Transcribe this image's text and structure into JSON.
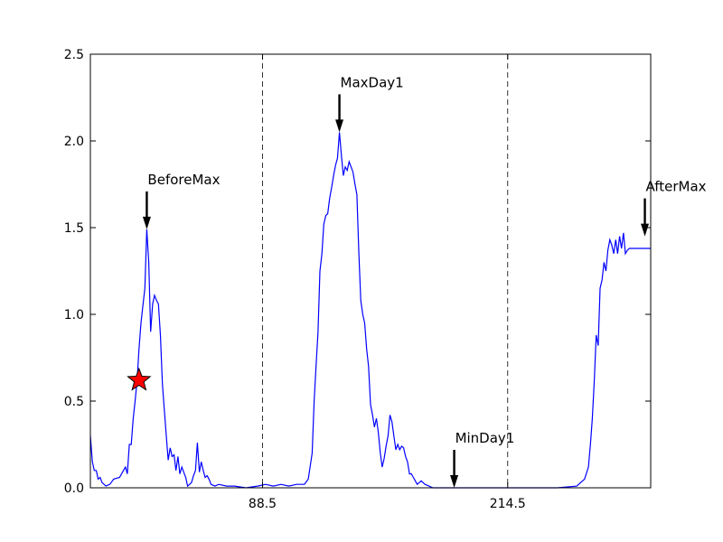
{
  "chart_data": {
    "type": "line",
    "title": "",
    "xlabel": "",
    "ylabel": "",
    "xlim": [
      0,
      288
    ],
    "ylim": [
      0,
      2.5
    ],
    "xticks": [
      {
        "value": 88.5,
        "label": "88.5"
      },
      {
        "value": 214.5,
        "label": "214.5"
      }
    ],
    "yticks": [
      {
        "value": 0.0,
        "label": "0.0"
      },
      {
        "value": 0.5,
        "label": "0.5"
      },
      {
        "value": 1.0,
        "label": "1.0"
      },
      {
        "value": 1.5,
        "label": "1.5"
      },
      {
        "value": 2.0,
        "label": "2.0"
      },
      {
        "value": 2.5,
        "label": "2.5"
      }
    ],
    "vlines": [
      88.5,
      214.5
    ],
    "series": [
      {
        "color": "#0000ff",
        "points": [
          [
            0,
            0.3
          ],
          [
            1,
            0.15
          ],
          [
            2,
            0.1
          ],
          [
            3,
            0.1
          ],
          [
            4,
            0.05
          ],
          [
            5,
            0.06
          ],
          [
            6,
            0.03
          ],
          [
            8,
            0.01
          ],
          [
            10,
            0.02
          ],
          [
            12,
            0.05
          ],
          [
            15,
            0.06
          ],
          [
            17,
            0.1
          ],
          [
            18,
            0.12
          ],
          [
            19,
            0.08
          ],
          [
            20,
            0.25
          ],
          [
            21,
            0.25
          ],
          [
            22,
            0.4
          ],
          [
            23,
            0.5
          ],
          [
            24,
            0.62
          ],
          [
            25,
            0.8
          ],
          [
            26,
            0.95
          ],
          [
            27,
            1.05
          ],
          [
            28,
            1.15
          ],
          [
            29,
            1.49
          ],
          [
            30,
            1.3
          ],
          [
            31,
            0.9
          ],
          [
            32,
            1.06
          ],
          [
            33,
            1.11
          ],
          [
            34,
            1.08
          ],
          [
            35,
            1.06
          ],
          [
            36,
            0.88
          ],
          [
            37,
            0.6
          ],
          [
            38,
            0.45
          ],
          [
            39,
            0.3
          ],
          [
            40,
            0.16
          ],
          [
            41,
            0.23
          ],
          [
            42,
            0.18
          ],
          [
            43,
            0.19
          ],
          [
            44,
            0.1
          ],
          [
            45,
            0.18
          ],
          [
            46,
            0.08
          ],
          [
            47,
            0.12
          ],
          [
            48,
            0.09
          ],
          [
            49,
            0.06
          ],
          [
            50,
            0.01
          ],
          [
            51,
            0.02
          ],
          [
            52,
            0.03
          ],
          [
            53,
            0.07
          ],
          [
            54,
            0.1
          ],
          [
            55,
            0.26
          ],
          [
            56,
            0.09
          ],
          [
            57,
            0.15
          ],
          [
            58,
            0.1
          ],
          [
            59,
            0.06
          ],
          [
            60,
            0.07
          ],
          [
            61,
            0.05
          ],
          [
            62,
            0.02
          ],
          [
            64,
            0.01
          ],
          [
            66,
            0.02
          ],
          [
            70,
            0.01
          ],
          [
            74,
            0.01
          ],
          [
            80,
            0.0
          ],
          [
            86,
            0.01
          ],
          [
            90,
            0.02
          ],
          [
            94,
            0.01
          ],
          [
            98,
            0.02
          ],
          [
            102,
            0.01
          ],
          [
            106,
            0.02
          ],
          [
            110,
            0.02
          ],
          [
            112,
            0.05
          ],
          [
            114,
            0.2
          ],
          [
            115,
            0.5
          ],
          [
            116,
            0.7
          ],
          [
            117,
            0.9
          ],
          [
            118,
            1.25
          ],
          [
            119,
            1.35
          ],
          [
            120,
            1.52
          ],
          [
            121,
            1.57
          ],
          [
            122,
            1.58
          ],
          [
            123,
            1.67
          ],
          [
            124,
            1.73
          ],
          [
            125,
            1.8
          ],
          [
            126,
            1.86
          ],
          [
            127,
            1.9
          ],
          [
            128,
            2.05
          ],
          [
            129,
            1.92
          ],
          [
            130,
            1.8
          ],
          [
            131,
            1.85
          ],
          [
            132,
            1.83
          ],
          [
            133,
            1.88
          ],
          [
            134,
            1.85
          ],
          [
            135,
            1.82
          ],
          [
            136,
            1.75
          ],
          [
            137,
            1.69
          ],
          [
            138,
            1.35
          ],
          [
            139,
            1.08
          ],
          [
            140,
            1.0
          ],
          [
            141,
            0.95
          ],
          [
            142,
            0.8
          ],
          [
            143,
            0.7
          ],
          [
            144,
            0.48
          ],
          [
            145,
            0.42
          ],
          [
            146,
            0.35
          ],
          [
            147,
            0.4
          ],
          [
            148,
            0.32
          ],
          [
            149,
            0.2
          ],
          [
            150,
            0.12
          ],
          [
            151,
            0.17
          ],
          [
            152,
            0.24
          ],
          [
            153,
            0.3
          ],
          [
            154,
            0.42
          ],
          [
            155,
            0.38
          ],
          [
            156,
            0.3
          ],
          [
            157,
            0.22
          ],
          [
            158,
            0.25
          ],
          [
            159,
            0.22
          ],
          [
            160,
            0.24
          ],
          [
            161,
            0.23
          ],
          [
            162,
            0.18
          ],
          [
            163,
            0.15
          ],
          [
            164,
            0.08
          ],
          [
            165,
            0.08
          ],
          [
            166,
            0.06
          ],
          [
            167,
            0.04
          ],
          [
            168,
            0.02
          ],
          [
            170,
            0.04
          ],
          [
            172,
            0.02
          ],
          [
            174,
            0.01
          ],
          [
            176,
            0.0
          ],
          [
            180,
            0.0
          ],
          [
            190,
            0.0
          ],
          [
            200,
            0.0
          ],
          [
            210,
            0.0
          ],
          [
            220,
            0.0
          ],
          [
            230,
            0.0
          ],
          [
            240,
            0.0
          ],
          [
            250,
            0.01
          ],
          [
            252,
            0.03
          ],
          [
            254,
            0.05
          ],
          [
            256,
            0.12
          ],
          [
            257,
            0.25
          ],
          [
            258,
            0.4
          ],
          [
            259,
            0.62
          ],
          [
            260,
            0.88
          ],
          [
            261,
            0.82
          ],
          [
            262,
            1.15
          ],
          [
            263,
            1.2
          ],
          [
            264,
            1.3
          ],
          [
            265,
            1.25
          ],
          [
            266,
            1.37
          ],
          [
            267,
            1.43
          ],
          [
            268,
            1.4
          ],
          [
            269,
            1.35
          ],
          [
            270,
            1.43
          ],
          [
            271,
            1.35
          ],
          [
            272,
            1.45
          ],
          [
            273,
            1.38
          ],
          [
            274,
            1.47
          ],
          [
            275,
            1.35
          ],
          [
            276,
            1.37
          ],
          [
            277,
            1.38
          ],
          [
            288,
            1.38
          ]
        ]
      }
    ],
    "annotations": [
      {
        "label": "BeforeMax",
        "x": 29,
        "y": 1.49
      },
      {
        "label": "MaxDay1",
        "x": 128,
        "y": 2.05
      },
      {
        "label": "MinDay1",
        "x": 187,
        "y": 0.0
      },
      {
        "label": "AfterMax",
        "x": 285,
        "y": 1.45
      }
    ],
    "marker": {
      "shape": "star",
      "color": "#ff0000",
      "x": 25,
      "y": 0.62
    }
  }
}
